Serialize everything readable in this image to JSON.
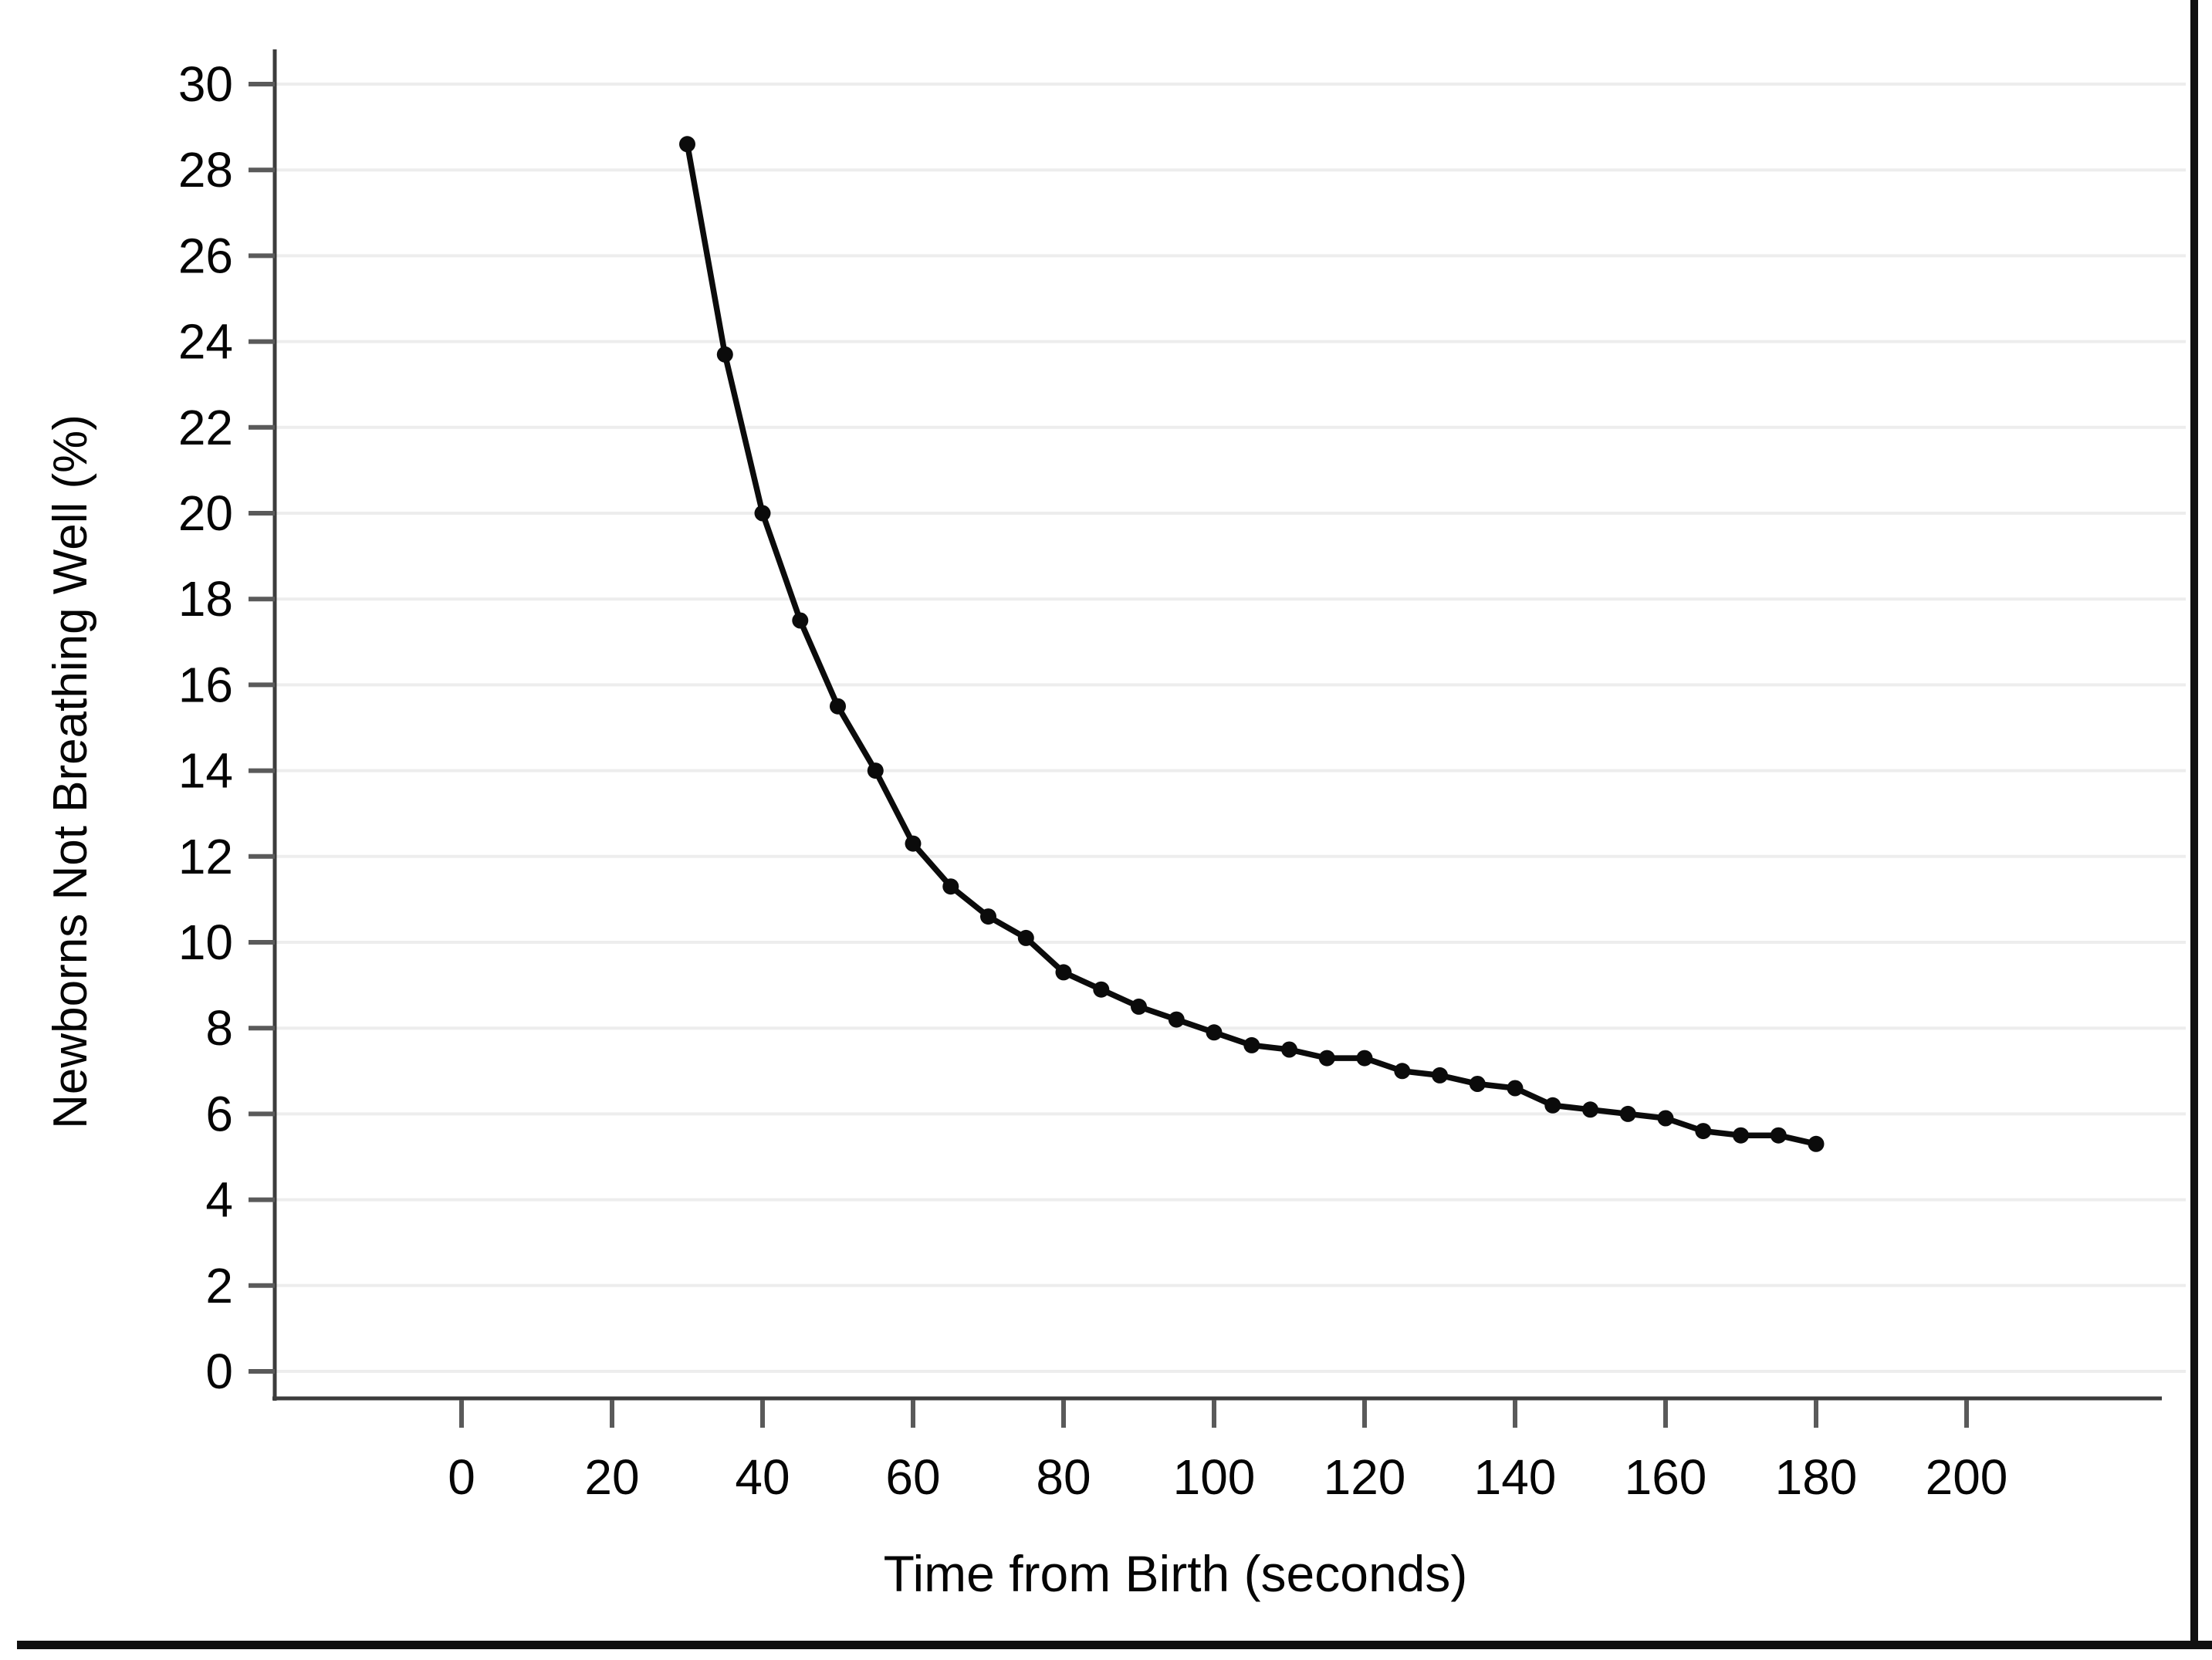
{
  "chart_data": {
    "type": "line",
    "title": "",
    "xlabel": "Time from Birth (seconds)",
    "ylabel": "Newborns Not Breathing Well (%)",
    "x": [
      30,
      35,
      40,
      45,
      50,
      55,
      60,
      65,
      70,
      75,
      80,
      85,
      90,
      95,
      100,
      105,
      110,
      115,
      120,
      125,
      130,
      135,
      140,
      145,
      150,
      155,
      160,
      165,
      170,
      175,
      180
    ],
    "y": [
      28.6,
      23.7,
      20.0,
      17.5,
      15.5,
      14.0,
      12.3,
      11.3,
      10.6,
      10.1,
      9.3,
      8.9,
      8.5,
      8.2,
      7.9,
      7.6,
      7.5,
      7.3,
      7.3,
      7.0,
      6.9,
      6.7,
      6.6,
      6.2,
      6.1,
      6.0,
      5.9,
      5.6,
      5.5,
      5.5,
      5.3
    ],
    "xticks": [
      0,
      20,
      40,
      60,
      80,
      100,
      120,
      140,
      160,
      180,
      200
    ],
    "yticks": [
      0,
      2,
      4,
      6,
      8,
      10,
      12,
      14,
      16,
      18,
      20,
      22,
      24,
      26,
      28,
      30
    ],
    "xlim": [
      -25,
      226
    ],
    "ylim": [
      0,
      30
    ],
    "grid": "horizontal-only",
    "legend": "none",
    "marker": "filled-circle",
    "series_name": "Newborns not breathing well"
  },
  "colors": {
    "background": "#ffffff",
    "line": "#0b0b0b",
    "marker": "#0b0b0b",
    "gridline": "#ededed",
    "axis_line": "#3c3c3c",
    "tick_mark": "#5a5a5a",
    "tick_label": "#050505",
    "page_border": "#101010"
  }
}
